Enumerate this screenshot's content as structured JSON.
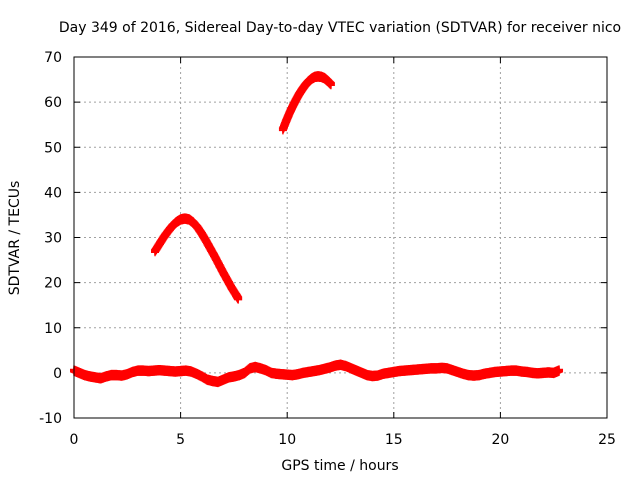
{
  "chart_data": {
    "type": "scatter",
    "title": "Day 349 of 2016, Sidereal Day-to-day VTEC variation (SDTVAR) for receiver nico",
    "xlabel": "GPS time / hours",
    "ylabel": "SDTVAR / TECUs",
    "xlim": [
      0,
      25
    ],
    "ylim": [
      -10,
      70
    ],
    "x_ticks": [
      0,
      5,
      10,
      15,
      20,
      25
    ],
    "y_ticks": [
      -10,
      0,
      10,
      20,
      30,
      40,
      50,
      60,
      70
    ],
    "grid": true,
    "marker": "plus",
    "series_color": "#ff0000",
    "series": [
      {
        "name": "baseline",
        "points": [
          [
            0.0,
            0.5
          ],
          [
            0.25,
            0.0
          ],
          [
            0.5,
            -0.5
          ],
          [
            0.75,
            -0.8
          ],
          [
            1.0,
            -1.0
          ],
          [
            1.25,
            -1.2
          ],
          [
            1.5,
            -0.8
          ],
          [
            1.75,
            -0.5
          ],
          [
            2.0,
            -0.5
          ],
          [
            2.25,
            -0.6
          ],
          [
            2.5,
            -0.3
          ],
          [
            2.75,
            0.2
          ],
          [
            3.0,
            0.5
          ],
          [
            3.25,
            0.5
          ],
          [
            3.5,
            0.4
          ],
          [
            3.75,
            0.5
          ],
          [
            4.0,
            0.6
          ],
          [
            4.25,
            0.5
          ],
          [
            4.5,
            0.4
          ],
          [
            4.75,
            0.3
          ],
          [
            5.0,
            0.4
          ],
          [
            5.25,
            0.5
          ],
          [
            5.5,
            0.3
          ],
          [
            5.75,
            -0.2
          ],
          [
            6.0,
            -0.8
          ],
          [
            6.25,
            -1.5
          ],
          [
            6.5,
            -1.8
          ],
          [
            6.75,
            -2.0
          ],
          [
            7.0,
            -1.5
          ],
          [
            7.25,
            -1.0
          ],
          [
            7.5,
            -0.8
          ],
          [
            7.75,
            -0.5
          ],
          [
            8.0,
            0.0
          ],
          [
            8.25,
            1.0
          ],
          [
            8.5,
            1.3
          ],
          [
            8.75,
            1.0
          ],
          [
            9.0,
            0.6
          ],
          [
            9.25,
            0.0
          ],
          [
            9.5,
            -0.2
          ],
          [
            9.75,
            -0.3
          ],
          [
            10.0,
            -0.4
          ],
          [
            10.25,
            -0.5
          ],
          [
            10.5,
            -0.3
          ],
          [
            10.75,
            0.0
          ],
          [
            11.0,
            0.2
          ],
          [
            11.25,
            0.4
          ],
          [
            11.5,
            0.6
          ],
          [
            11.75,
            0.9
          ],
          [
            12.0,
            1.2
          ],
          [
            12.25,
            1.6
          ],
          [
            12.5,
            1.8
          ],
          [
            12.75,
            1.5
          ],
          [
            13.0,
            1.0
          ],
          [
            13.25,
            0.5
          ],
          [
            13.5,
            0.0
          ],
          [
            13.75,
            -0.5
          ],
          [
            14.0,
            -0.7
          ],
          [
            14.25,
            -0.6
          ],
          [
            14.5,
            -0.2
          ],
          [
            14.75,
            0.0
          ],
          [
            15.0,
            0.2
          ],
          [
            15.25,
            0.4
          ],
          [
            15.5,
            0.5
          ],
          [
            15.75,
            0.6
          ],
          [
            16.0,
            0.7
          ],
          [
            16.25,
            0.8
          ],
          [
            16.5,
            0.9
          ],
          [
            16.75,
            1.0
          ],
          [
            17.0,
            1.0
          ],
          [
            17.25,
            1.1
          ],
          [
            17.5,
            1.0
          ],
          [
            17.75,
            0.6
          ],
          [
            18.0,
            0.2
          ],
          [
            18.25,
            -0.2
          ],
          [
            18.5,
            -0.5
          ],
          [
            18.75,
            -0.6
          ],
          [
            19.0,
            -0.5
          ],
          [
            19.25,
            -0.2
          ],
          [
            19.5,
            0.0
          ],
          [
            19.75,
            0.2
          ],
          [
            20.0,
            0.3
          ],
          [
            20.25,
            0.4
          ],
          [
            20.5,
            0.5
          ],
          [
            20.75,
            0.5
          ],
          [
            21.0,
            0.3
          ],
          [
            21.25,
            0.2
          ],
          [
            21.5,
            0.0
          ],
          [
            21.75,
            -0.1
          ],
          [
            22.0,
            0.0
          ],
          [
            22.25,
            0.1
          ],
          [
            22.5,
            0.0
          ],
          [
            22.75,
            0.5
          ]
        ]
      },
      {
        "name": "arc-1",
        "points": [
          [
            3.8,
            27.0
          ],
          [
            4.0,
            28.5
          ],
          [
            4.2,
            30.0
          ],
          [
            4.4,
            31.3
          ],
          [
            4.6,
            32.5
          ],
          [
            4.8,
            33.4
          ],
          [
            5.0,
            34.0
          ],
          [
            5.2,
            34.2
          ],
          [
            5.4,
            34.0
          ],
          [
            5.6,
            33.3
          ],
          [
            5.8,
            32.2
          ],
          [
            6.0,
            30.8
          ],
          [
            6.2,
            29.2
          ],
          [
            6.4,
            27.5
          ],
          [
            6.6,
            25.8
          ],
          [
            6.8,
            24.0
          ],
          [
            7.0,
            22.2
          ],
          [
            7.2,
            20.5
          ],
          [
            7.4,
            18.8
          ],
          [
            7.6,
            17.3
          ],
          [
            7.7,
            16.5
          ]
        ]
      },
      {
        "name": "arc-2",
        "points": [
          [
            9.8,
            54.0
          ],
          [
            9.95,
            55.8
          ],
          [
            10.1,
            57.5
          ],
          [
            10.25,
            59.0
          ],
          [
            10.4,
            60.4
          ],
          [
            10.55,
            61.7
          ],
          [
            10.7,
            62.8
          ],
          [
            10.85,
            63.8
          ],
          [
            11.0,
            64.6
          ],
          [
            11.15,
            65.2
          ],
          [
            11.3,
            65.6
          ],
          [
            11.45,
            65.7
          ],
          [
            11.6,
            65.6
          ],
          [
            11.75,
            65.3
          ],
          [
            11.9,
            64.7
          ],
          [
            12.05,
            64.0
          ]
        ]
      }
    ]
  }
}
